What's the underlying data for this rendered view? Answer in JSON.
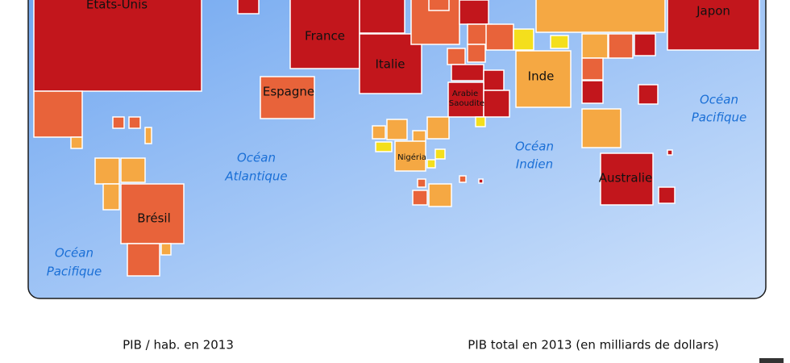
{
  "countries": {
    "usa": "Etats-Unis",
    "japan": "Japon",
    "france": "France",
    "italy": "Italie",
    "spain": "Espagne",
    "india": "Inde",
    "saudi": [
      "Arabie",
      "Saoudite"
    ],
    "nigeria": "Nigéria",
    "brazil": "Brésil",
    "australia": "Australie"
  },
  "oceans": [
    {
      "lines": [
        "Océan",
        "Atlantique"
      ]
    },
    {
      "lines": [
        "Océan",
        "Indien"
      ]
    },
    {
      "lines": [
        "Océan",
        "Pacifique"
      ]
    },
    {
      "lines": [
        "Océan",
        "Pacifique"
      ]
    }
  ],
  "legend": {
    "per_capita_title": "PIB / hab. en 2013",
    "total_title": "PIB total en 2013 (en milliards de dollars)"
  }
}
